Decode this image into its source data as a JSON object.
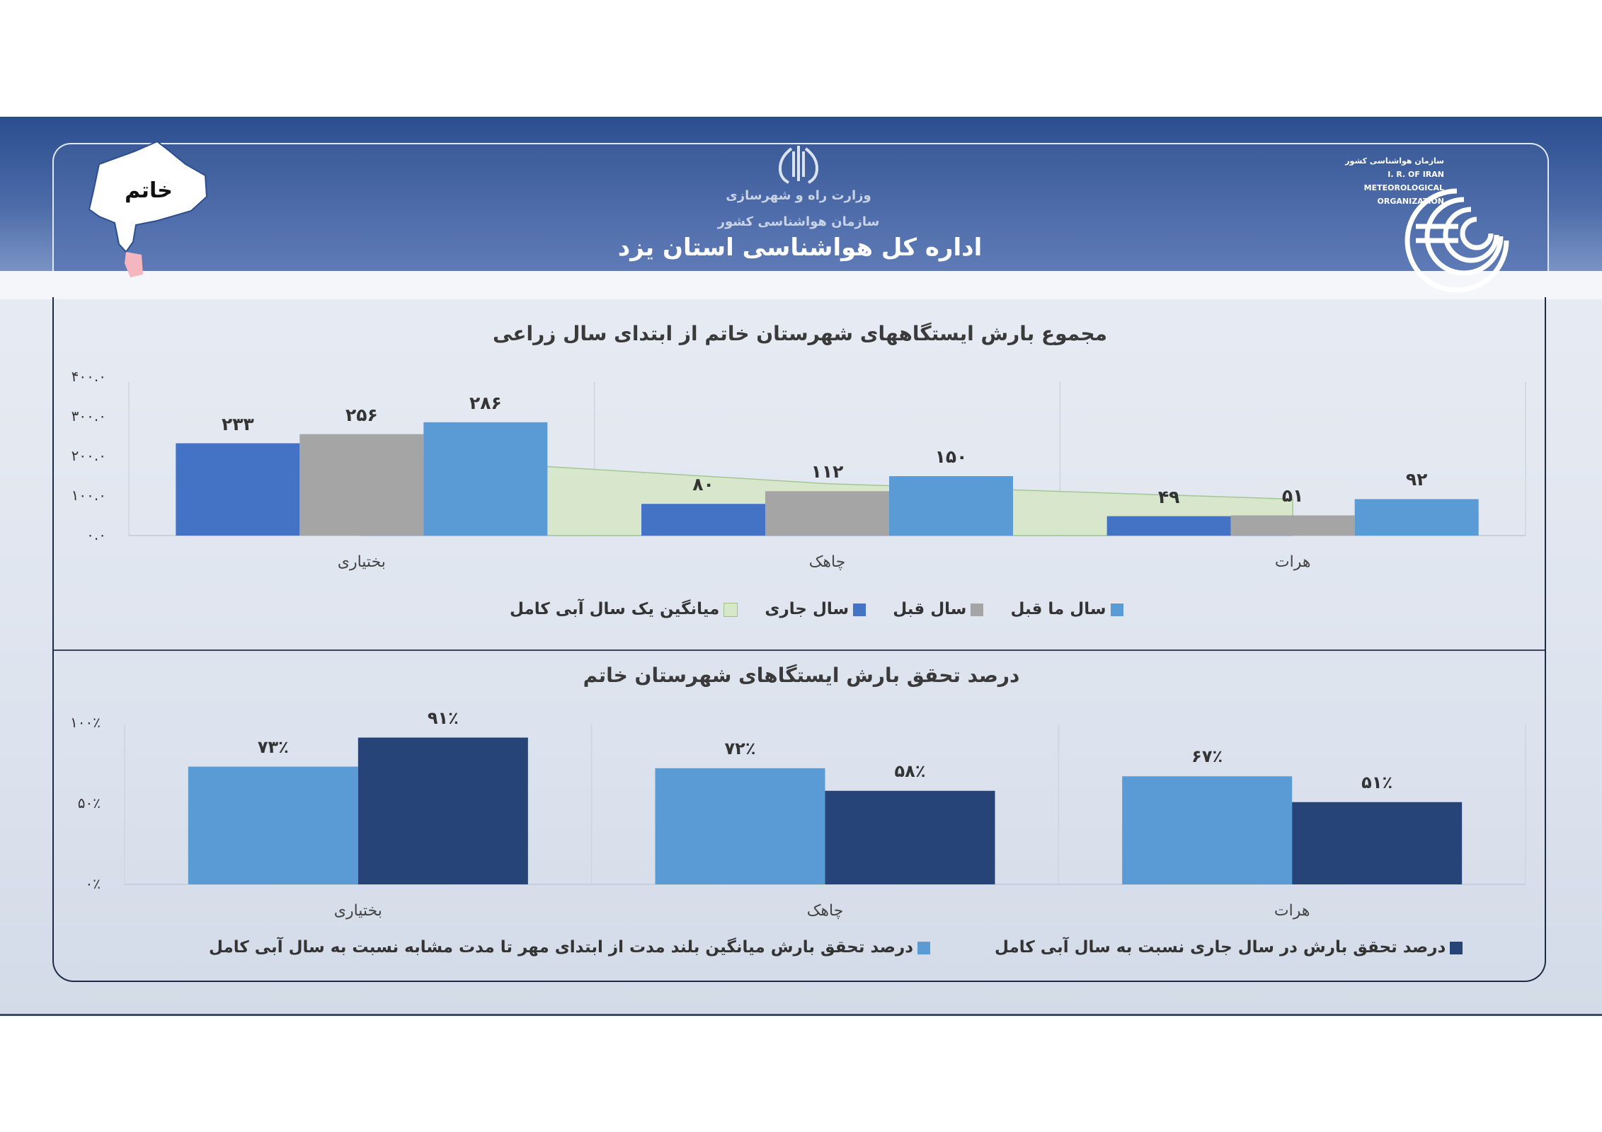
{
  "header": {
    "ministry": "وزارت راه و شهرسازی",
    "organization": "سازمان هواشناسی کشور",
    "office": "اداره کل هواشناسی استان یزد",
    "region_label": "خاتم",
    "logo_lines": [
      "سازمان هواشناسی کشور",
      "I. R. OF IRAN",
      "METEOROLOGICAL",
      "ORGANIZATION"
    ]
  },
  "colors": {
    "current_year": "#4472c4",
    "prev_year": "#a5a5a5",
    "two_years_ago": "#5b9bd5",
    "longterm_area": "#d7e8c9",
    "pct_light": "#5b9bd5",
    "pct_dark": "#264478"
  },
  "chart_data": [
    {
      "type": "bar",
      "title": "مجموع بارش ایستگاههای شهرستان خاتم  از ابتدای سال زراعی",
      "categories": [
        "بختیاری",
        "چاهک",
        "هرات"
      ],
      "series": [
        {
          "name": "سال جاری",
          "values": [
            233,
            80,
            49
          ]
        },
        {
          "name": "سال قبل",
          "values": [
            256,
            112,
            51
          ]
        },
        {
          "name": "سال ما قبل",
          "values": [
            286,
            150,
            92
          ]
        },
        {
          "name": "میانگین  یک سال آبی کامل",
          "type": "area",
          "values": [
            203,
            131,
            92
          ]
        }
      ],
      "data_labels": [
        [
          "۲۳۳",
          "۲۵۶",
          "۲۸۶"
        ],
        [
          "۸۰",
          "۱۱۲",
          "۱۵۰"
        ],
        [
          "۴۹",
          "۵۱",
          "۹۲"
        ]
      ],
      "yticks": [
        "۰.۰",
        "۱۰۰.۰",
        "۲۰۰.۰",
        "۳۰۰.۰",
        "۴۰۰.۰"
      ],
      "ylim": [
        0,
        400
      ],
      "legend_order": [
        "سال ما قبل",
        "سال قبل",
        "سال جاری",
        "میانگین  یک سال آبی کامل"
      ],
      "legend_position": "bottom"
    },
    {
      "type": "bar",
      "title": "درصد تحقق بارش ایستگاهای شهرستان خاتم",
      "categories": [
        "بختیاری",
        "چاهک",
        "هرات"
      ],
      "series": [
        {
          "name": "درصد تحقق بارش میانگین بلند مدت از ابتدای مهر تا مدت مشابه نسبت به سال آبی کامل",
          "values": [
            73,
            72,
            67
          ]
        },
        {
          "name": "درصد تحقق بارش در سال جاری نسبت به سال آبی کامل",
          "values": [
            91,
            58,
            51
          ]
        }
      ],
      "data_labels": [
        [
          "۷۳٪",
          "۹۱٪"
        ],
        [
          "۷۲٪",
          "۵۸٪"
        ],
        [
          "۶۷٪",
          "۵۱٪"
        ]
      ],
      "yticks": [
        "۰٪",
        "۵۰٪",
        "۱۰۰٪"
      ],
      "ylim": [
        0,
        100
      ],
      "legend_position": "bottom"
    }
  ]
}
